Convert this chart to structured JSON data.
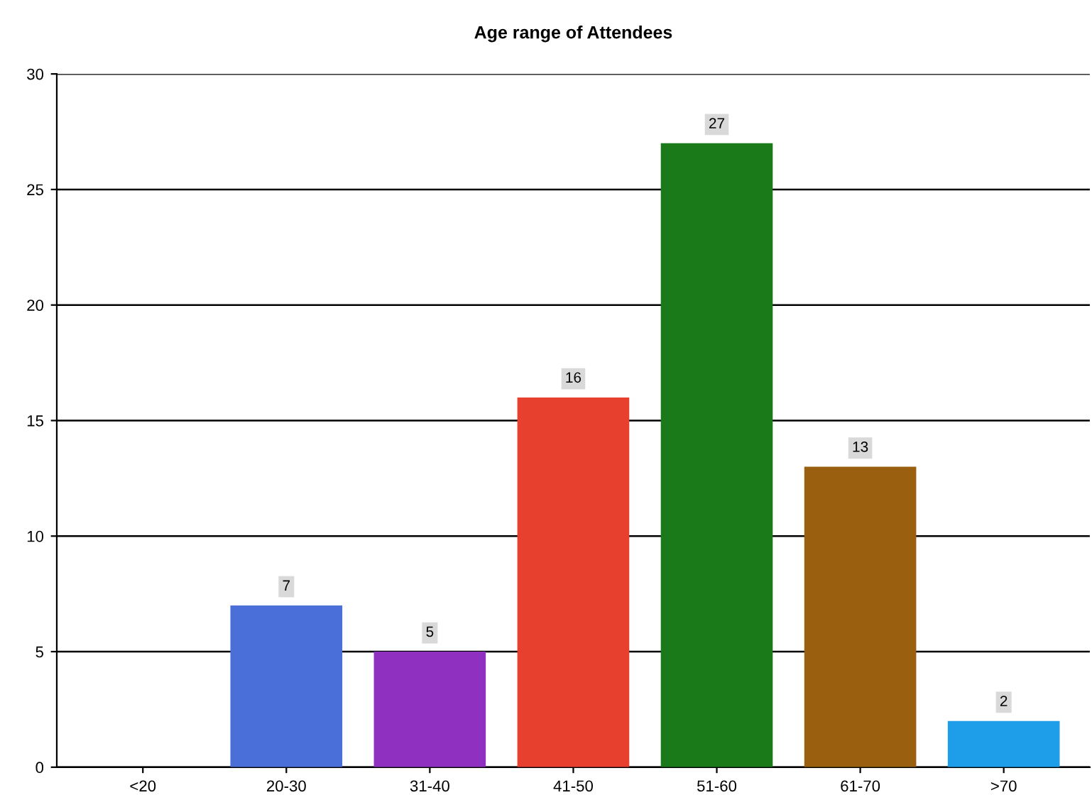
{
  "chart_data": {
    "type": "bar",
    "title": "Age range of Attendees",
    "categories": [
      "<20",
      "20-30",
      "31-40",
      "41-50",
      "51-60",
      "61-70",
      ">70"
    ],
    "values": [
      0,
      7,
      5,
      16,
      27,
      13,
      2
    ],
    "value_labels": [
      null,
      "7",
      "5",
      "16",
      "27",
      "13",
      "2"
    ],
    "colors": [
      "#4a6fd8",
      "#4a6fd8",
      "#9030c0",
      "#e8402e",
      "#1a7a1a",
      "#9a6010",
      "#1e9ee8"
    ],
    "ylim": [
      0,
      30
    ],
    "yticks": [
      0,
      5,
      10,
      15,
      20,
      25,
      30
    ],
    "grid": "y"
  }
}
